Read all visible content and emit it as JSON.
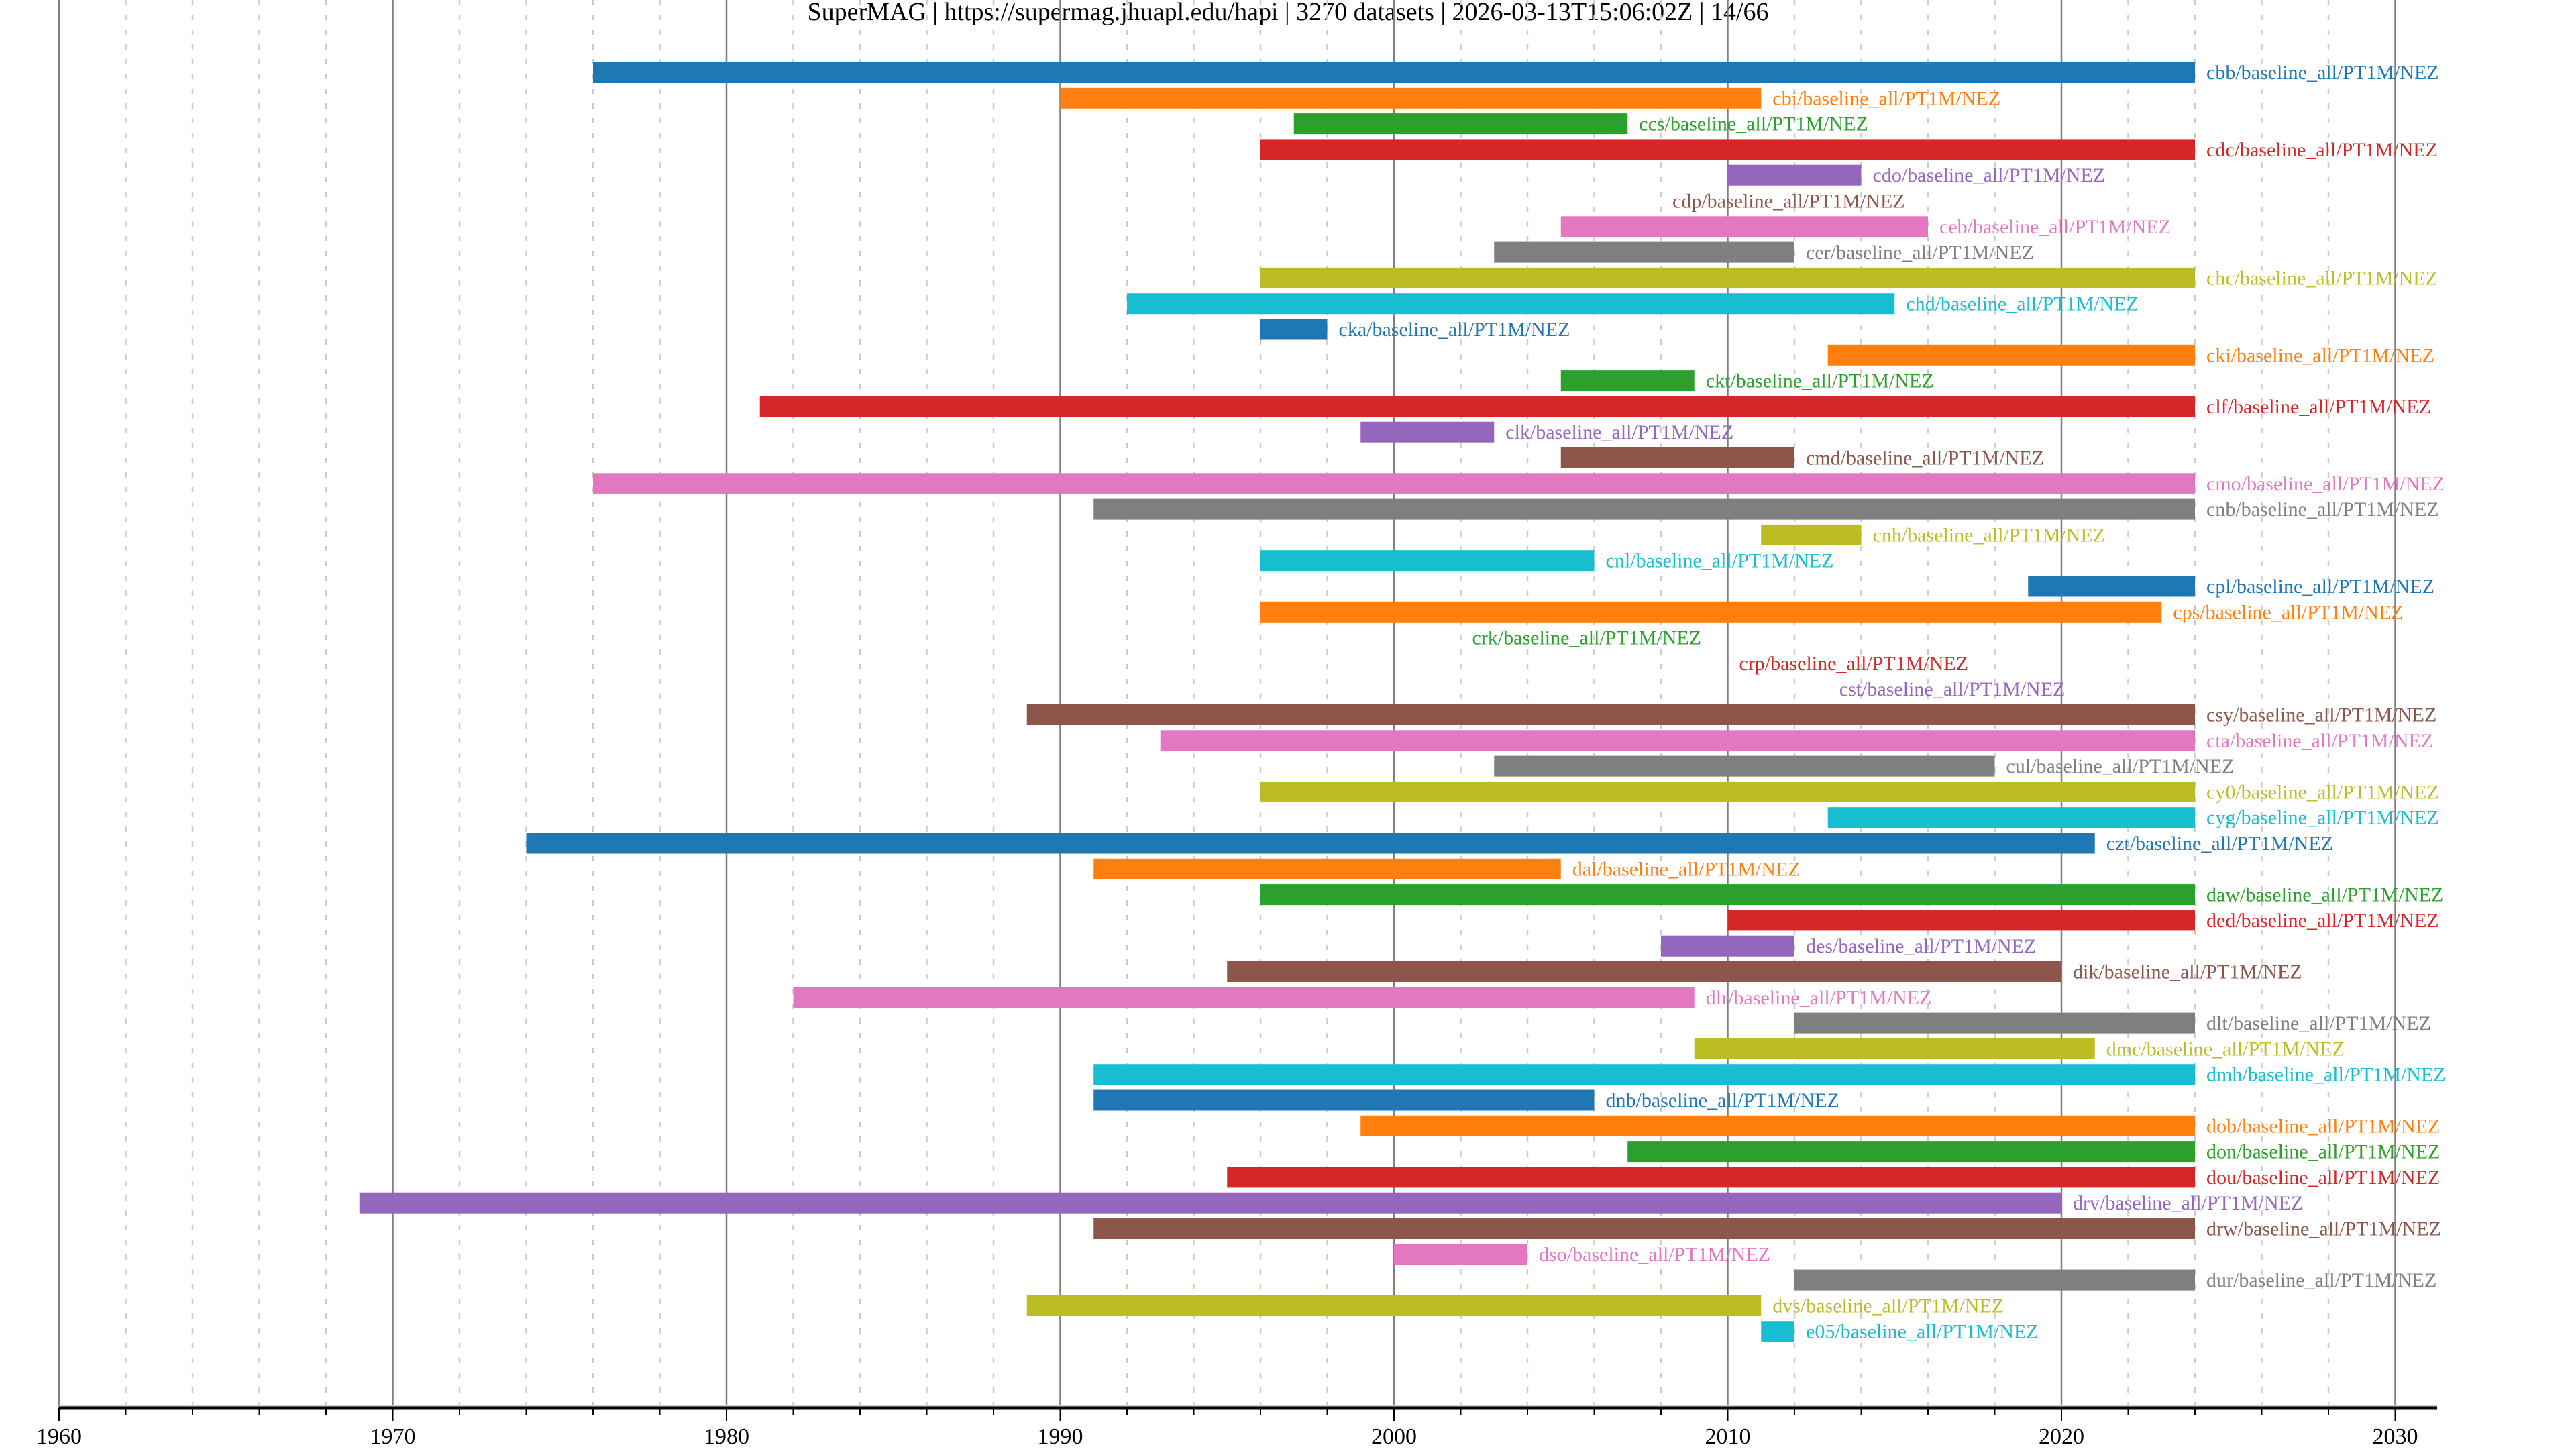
{
  "chart_data": {
    "type": "bar",
    "orientation": "horizontal-timeline",
    "title": "SuperMAG | https://supermag.jhuapl.edu/hapi | 3270 datasets | 2026-03-13T15:06:02Z | 14/66",
    "xlabel": "",
    "ylabel": "",
    "xlim": [
      1960,
      2031.5
    ],
    "x_ticks": [
      "1960",
      "1970",
      "1980",
      "1990",
      "2000",
      "2010",
      "2020",
      "2030"
    ],
    "grid": {
      "major": "decade solid",
      "minor": "2-year dashed"
    },
    "legend": "none; labels printed at bar ends",
    "colors": [
      "#1f77b4",
      "#ff7f0e",
      "#2ca02c",
      "#d62728",
      "#9467bd",
      "#8c564b",
      "#e377c2",
      "#7f7f7f",
      "#bcbd22",
      "#17becf"
    ],
    "series": [
      {
        "label": "cbb/baseline_all/PT1M/NEZ",
        "start": 1976,
        "end": 2024
      },
      {
        "label": "cbi/baseline_all/PT1M/NEZ",
        "start": 1990,
        "end": 2011
      },
      {
        "label": "ccs/baseline_all/PT1M/NEZ",
        "start": 1997,
        "end": 2007
      },
      {
        "label": "cdc/baseline_all/PT1M/NEZ",
        "start": 1996,
        "end": 2024
      },
      {
        "label": "cdo/baseline_all/PT1M/NEZ",
        "start": 2010,
        "end": 2014
      },
      {
        "label": "cdp/baseline_all/PT1M/NEZ",
        "start": 2008,
        "end": 2008
      },
      {
        "label": "ceb/baseline_all/PT1M/NEZ",
        "start": 2005,
        "end": 2016
      },
      {
        "label": "cer/baseline_all/PT1M/NEZ",
        "start": 2003,
        "end": 2012
      },
      {
        "label": "chc/baseline_all/PT1M/NEZ",
        "start": 1996,
        "end": 2024
      },
      {
        "label": "chd/baseline_all/PT1M/NEZ",
        "start": 1992,
        "end": 2015
      },
      {
        "label": "cka/baseline_all/PT1M/NEZ",
        "start": 1996,
        "end": 1998
      },
      {
        "label": "cki/baseline_all/PT1M/NEZ",
        "start": 2013,
        "end": 2024
      },
      {
        "label": "ckt/baseline_all/PT1M/NEZ",
        "start": 2005,
        "end": 2009
      },
      {
        "label": "clf/baseline_all/PT1M/NEZ",
        "start": 1981,
        "end": 2024
      },
      {
        "label": "clk/baseline_all/PT1M/NEZ",
        "start": 1999,
        "end": 2003
      },
      {
        "label": "cmd/baseline_all/PT1M/NEZ",
        "start": 2005,
        "end": 2012
      },
      {
        "label": "cmo/baseline_all/PT1M/NEZ",
        "start": 1976,
        "end": 2024
      },
      {
        "label": "cnb/baseline_all/PT1M/NEZ",
        "start": 1991,
        "end": 2024
      },
      {
        "label": "cnh/baseline_all/PT1M/NEZ",
        "start": 2011,
        "end": 2014
      },
      {
        "label": "cnl/baseline_all/PT1M/NEZ",
        "start": 1996,
        "end": 2006
      },
      {
        "label": "cpl/baseline_all/PT1M/NEZ",
        "start": 2019,
        "end": 2024
      },
      {
        "label": "cps/baseline_all/PT1M/NEZ",
        "start": 1996,
        "end": 2023
      },
      {
        "label": "crk/baseline_all/PT1M/NEZ",
        "start": 2002,
        "end": 2002
      },
      {
        "label": "crp/baseline_all/PT1M/NEZ",
        "start": 2010,
        "end": 2010
      },
      {
        "label": "cst/baseline_all/PT1M/NEZ",
        "start": 2013,
        "end": 2013
      },
      {
        "label": "csy/baseline_all/PT1M/NEZ",
        "start": 1989,
        "end": 2024
      },
      {
        "label": "cta/baseline_all/PT1M/NEZ",
        "start": 1993,
        "end": 2024
      },
      {
        "label": "cul/baseline_all/PT1M/NEZ",
        "start": 2003,
        "end": 2018
      },
      {
        "label": "cy0/baseline_all/PT1M/NEZ",
        "start": 1996,
        "end": 2024
      },
      {
        "label": "cyg/baseline_all/PT1M/NEZ",
        "start": 2013,
        "end": 2024
      },
      {
        "label": "czt/baseline_all/PT1M/NEZ",
        "start": 1974,
        "end": 2021
      },
      {
        "label": "dal/baseline_all/PT1M/NEZ",
        "start": 1991,
        "end": 2005
      },
      {
        "label": "daw/baseline_all/PT1M/NEZ",
        "start": 1996,
        "end": 2024
      },
      {
        "label": "ded/baseline_all/PT1M/NEZ",
        "start": 2010,
        "end": 2024
      },
      {
        "label": "des/baseline_all/PT1M/NEZ",
        "start": 2008,
        "end": 2012
      },
      {
        "label": "dik/baseline_all/PT1M/NEZ",
        "start": 1995,
        "end": 2020
      },
      {
        "label": "dlr/baseline_all/PT1M/NEZ",
        "start": 1982,
        "end": 2009
      },
      {
        "label": "dlt/baseline_all/PT1M/NEZ",
        "start": 2012,
        "end": 2024
      },
      {
        "label": "dmc/baseline_all/PT1M/NEZ",
        "start": 2009,
        "end": 2021
      },
      {
        "label": "dmh/baseline_all/PT1M/NEZ",
        "start": 1991,
        "end": 2024
      },
      {
        "label": "dnb/baseline_all/PT1M/NEZ",
        "start": 1991,
        "end": 2006
      },
      {
        "label": "dob/baseline_all/PT1M/NEZ",
        "start": 1999,
        "end": 2024
      },
      {
        "label": "don/baseline_all/PT1M/NEZ",
        "start": 2007,
        "end": 2024
      },
      {
        "label": "dou/baseline_all/PT1M/NEZ",
        "start": 1995,
        "end": 2024
      },
      {
        "label": "drv/baseline_all/PT1M/NEZ",
        "start": 1969,
        "end": 2020
      },
      {
        "label": "drw/baseline_all/PT1M/NEZ",
        "start": 1991,
        "end": 2024
      },
      {
        "label": "dso/baseline_all/PT1M/NEZ",
        "start": 2000,
        "end": 2004
      },
      {
        "label": "dur/baseline_all/PT1M/NEZ",
        "start": 2012,
        "end": 2024
      },
      {
        "label": "dvs/baseline_all/PT1M/NEZ",
        "start": 1989,
        "end": 2011
      },
      {
        "label": "e05/baseline_all/PT1M/NEZ",
        "start": 2011,
        "end": 2012
      }
    ]
  }
}
